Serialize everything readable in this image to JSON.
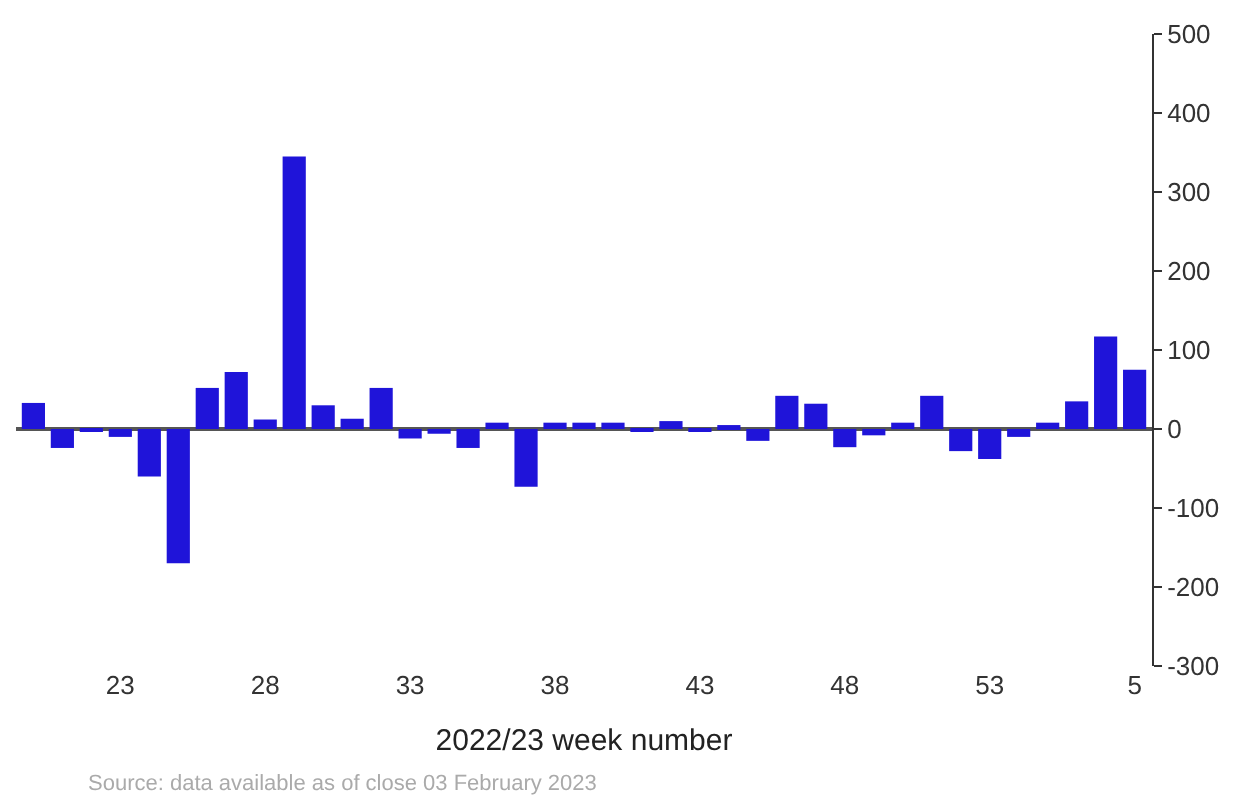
{
  "chart_data": {
    "type": "bar",
    "xlabel": "2022/23 week number",
    "categories": [
      null,
      null,
      null,
      "23",
      null,
      null,
      null,
      null,
      "28",
      null,
      null,
      null,
      null,
      "33",
      null,
      null,
      null,
      null,
      "38",
      null,
      null,
      null,
      null,
      "43",
      null,
      null,
      null,
      null,
      "48",
      null,
      null,
      null,
      null,
      "53",
      null,
      null,
      null,
      null,
      "5"
    ],
    "values": [
      33,
      -24,
      -3,
      -10,
      -60,
      -170,
      52,
      72,
      12,
      345,
      30,
      13,
      52,
      -12,
      -6,
      -24,
      8,
      -73,
      8,
      8,
      8,
      -3,
      10,
      -3,
      5,
      -15,
      42,
      32,
      -23,
      -8,
      8,
      42,
      -28,
      -38,
      -10,
      8,
      35,
      117,
      75
    ],
    "color": "#1f14d9",
    "ylim": [
      -300,
      500
    ],
    "yticks": [
      -300,
      -200,
      -100,
      0,
      100,
      200,
      300,
      400,
      500
    ],
    "annotations": [
      "Source: data available as of close 03 February 2023"
    ]
  }
}
